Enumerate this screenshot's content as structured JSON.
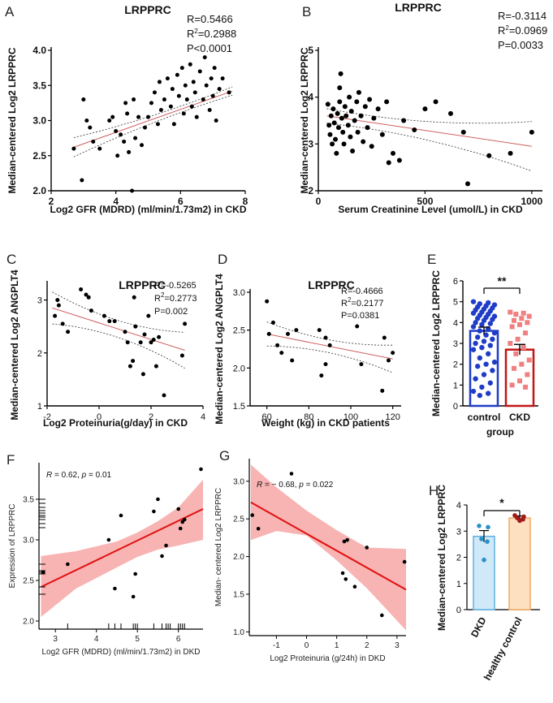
{
  "chart_data": [
    {
      "panel": "A",
      "type": "scatter",
      "title": "LRPPRC",
      "xlabel": "Log2 GFR (MDRD) (ml/min/1.73m2) in CKD",
      "ylabel": "Median-centered Log2 LRPPRC",
      "xlim": [
        2,
        8
      ],
      "ylim": [
        2.0,
        4.0
      ],
      "xticks": [
        "2",
        "4",
        "6",
        "8"
      ],
      "yticks": [
        "2.0",
        "2.5",
        "3.0",
        "3.5",
        "4.0"
      ],
      "stats": {
        "r": "R=0.5466",
        "r2": "R²=0.2988",
        "p": "P<0.0001"
      },
      "fit": {
        "x": [
          2.7,
          7.6
        ],
        "y": [
          2.62,
          3.42
        ]
      },
      "points": [
        [
          2.7,
          2.6
        ],
        [
          2.95,
          2.15
        ],
        [
          3.0,
          3.3
        ],
        [
          3.1,
          3.0
        ],
        [
          3.2,
          2.9
        ],
        [
          3.3,
          2.7
        ],
        [
          3.5,
          2.6
        ],
        [
          3.8,
          3.0
        ],
        [
          3.9,
          3.05
        ],
        [
          4.0,
          2.85
        ],
        [
          4.05,
          2.5
        ],
        [
          4.15,
          2.8
        ],
        [
          4.25,
          2.7
        ],
        [
          4.3,
          3.25
        ],
        [
          4.35,
          3.1
        ],
        [
          4.4,
          2.55
        ],
        [
          4.5,
          2.0
        ],
        [
          4.55,
          3.3
        ],
        [
          4.6,
          2.75
        ],
        [
          4.7,
          3.05
        ],
        [
          4.8,
          2.65
        ],
        [
          4.9,
          2.9
        ],
        [
          5.0,
          3.05
        ],
        [
          5.1,
          3.25
        ],
        [
          5.2,
          3.4
        ],
        [
          5.3,
          2.95
        ],
        [
          5.35,
          3.55
        ],
        [
          5.4,
          3.15
        ],
        [
          5.5,
          3.3
        ],
        [
          5.6,
          3.6
        ],
        [
          5.7,
          3.2
        ],
        [
          5.75,
          3.45
        ],
        [
          5.8,
          2.95
        ],
        [
          5.9,
          3.65
        ],
        [
          5.95,
          3.35
        ],
        [
          6.05,
          3.75
        ],
        [
          6.1,
          3.1
        ],
        [
          6.15,
          3.5
        ],
        [
          6.2,
          3.3
        ],
        [
          6.3,
          3.8
        ],
        [
          6.35,
          3.2
        ],
        [
          6.4,
          3.55
        ],
        [
          6.45,
          3.4
        ],
        [
          6.5,
          3.05
        ],
        [
          6.6,
          3.7
        ],
        [
          6.7,
          3.3
        ],
        [
          6.75,
          3.9
        ],
        [
          6.8,
          3.5
        ],
        [
          6.9,
          3.15
        ],
        [
          6.95,
          3.6
        ],
        [
          7.0,
          3.35
        ],
        [
          7.05,
          3.75
        ],
        [
          7.1,
          3.0
        ],
        [
          7.2,
          3.45
        ],
        [
          7.3,
          3.6
        ],
        [
          7.5,
          3.4
        ]
      ]
    },
    {
      "panel": "B",
      "type": "scatter",
      "title": "LRPPRC",
      "xlabel": "Serum Creatinine Level (umol/L) in CKD",
      "ylabel": "Median-centered Log2 LRPPRC",
      "xlim": [
        0,
        1050
      ],
      "ylim": [
        2,
        5
      ],
      "xticks": [
        "0",
        "500",
        "1000"
      ],
      "yticks": [
        "2",
        "3",
        "4",
        "5"
      ],
      "stats": {
        "r": "R=-0.3114",
        "r2": "R²=0.0969",
        "p": "P=0.0033"
      },
      "fit": {
        "x": [
          40,
          1000
        ],
        "y": [
          3.6,
          2.95
        ]
      },
      "points": [
        [
          45,
          3.85
        ],
        [
          50,
          3.4
        ],
        [
          55,
          3.2
        ],
        [
          60,
          3.6
        ],
        [
          65,
          3.0
        ],
        [
          70,
          3.75
        ],
        [
          75,
          3.45
        ],
        [
          80,
          3.1
        ],
        [
          85,
          2.8
        ],
        [
          90,
          3.65
        ],
        [
          95,
          3.35
        ],
        [
          100,
          4.2
        ],
        [
          100,
          3.9
        ],
        [
          105,
          4.5
        ],
        [
          110,
          3.55
        ],
        [
          115,
          3.25
        ],
        [
          120,
          3.0
        ],
        [
          125,
          3.8
        ],
        [
          130,
          3.6
        ],
        [
          140,
          3.4
        ],
        [
          145,
          4.0
        ],
        [
          150,
          3.15
        ],
        [
          155,
          3.7
        ],
        [
          160,
          2.85
        ],
        [
          170,
          3.5
        ],
        [
          180,
          3.9
        ],
        [
          185,
          3.25
        ],
        [
          190,
          4.1
        ],
        [
          200,
          3.6
        ],
        [
          210,
          3.05
        ],
        [
          220,
          3.8
        ],
        [
          230,
          3.35
        ],
        [
          240,
          3.95
        ],
        [
          250,
          2.95
        ],
        [
          260,
          3.55
        ],
        [
          280,
          3.75
        ],
        [
          300,
          3.2
        ],
        [
          320,
          3.9
        ],
        [
          330,
          2.6
        ],
        [
          350,
          2.8
        ],
        [
          380,
          2.65
        ],
        [
          400,
          3.5
        ],
        [
          450,
          3.3
        ],
        [
          500,
          3.75
        ],
        [
          550,
          3.9
        ],
        [
          620,
          3.65
        ],
        [
          680,
          3.25
        ],
        [
          700,
          2.15
        ],
        [
          800,
          2.75
        ],
        [
          900,
          2.8
        ],
        [
          1000,
          3.25
        ]
      ]
    },
    {
      "panel": "C",
      "type": "scatter",
      "title": "LRPPRC",
      "xlabel": "Log2 Proteinuria(g/day) in CKD",
      "ylabel": "Median-centered Log2 ANGPLT4",
      "xlim": [
        -2,
        4
      ],
      "ylim": [
        1,
        3.3
      ],
      "xticks": [
        "-2",
        "0",
        "2",
        "4"
      ],
      "yticks": [
        "1",
        "2",
        "3"
      ],
      "stats": {
        "r": "R=-0.5265",
        "r2": "R²=0.2773",
        "p": "P=0.002"
      },
      "fit": {
        "x": [
          -1.8,
          3.3
        ],
        "y": [
          2.85,
          2.05
        ]
      },
      "points": [
        [
          -1.7,
          2.7
        ],
        [
          -1.6,
          3.0
        ],
        [
          -1.55,
          2.9
        ],
        [
          -1.4,
          2.55
        ],
        [
          -1.2,
          2.4
        ],
        [
          -0.7,
          3.2
        ],
        [
          -0.5,
          3.1
        ],
        [
          -0.4,
          3.05
        ],
        [
          -0.3,
          2.8
        ],
        [
          0.2,
          2.7
        ],
        [
          0.4,
          2.6
        ],
        [
          0.6,
          2.6
        ],
        [
          1.0,
          2.4
        ],
        [
          1.1,
          2.2
        ],
        [
          1.2,
          1.75
        ],
        [
          1.3,
          1.85
        ],
        [
          1.35,
          3.05
        ],
        [
          1.4,
          2.5
        ],
        [
          1.6,
          2.2
        ],
        [
          1.7,
          1.6
        ],
        [
          1.75,
          2.35
        ],
        [
          1.9,
          2.7
        ],
        [
          2.0,
          2.2
        ],
        [
          2.1,
          2.25
        ],
        [
          2.2,
          1.75
        ],
        [
          2.3,
          2.3
        ],
        [
          2.5,
          1.2
        ],
        [
          3.2,
          1.95
        ],
        [
          3.3,
          2.55
        ]
      ]
    },
    {
      "panel": "D",
      "type": "scatter",
      "title": "LRPPRC",
      "xlabel": "Weight (kg) in CKD patients",
      "ylabel": "Median-centered Log2 ANGPLT4",
      "xlim": [
        52,
        124
      ],
      "ylim": [
        1.5,
        3.0
      ],
      "xticks": [
        "60",
        "80",
        "100",
        "120"
      ],
      "yticks": [
        "1.5",
        "2.0",
        "2.5",
        "3.0"
      ],
      "stats": {
        "r": "R=-0.4666",
        "r2": "R²=0.2177",
        "p": "P=0.0381"
      },
      "fit": {
        "x": [
          60,
          120
        ],
        "y": [
          2.45,
          2.12
        ]
      },
      "points": [
        [
          60,
          2.88
        ],
        [
          61,
          2.45
        ],
        [
          63,
          2.6
        ],
        [
          65,
          2.3
        ],
        [
          67,
          2.2
        ],
        [
          70,
          2.45
        ],
        [
          72,
          2.1
        ],
        [
          74,
          2.5
        ],
        [
          85,
          2.5
        ],
        [
          86,
          1.9
        ],
        [
          88,
          2.4
        ],
        [
          88,
          2.05
        ],
        [
          90,
          2.3
        ],
        [
          103,
          2.55
        ],
        [
          105,
          2.05
        ],
        [
          115,
          1.7
        ],
        [
          116,
          2.4
        ],
        [
          118,
          2.1
        ],
        [
          120,
          2.2
        ]
      ]
    },
    {
      "panel": "E",
      "type": "bar",
      "xlabel": "group",
      "ylabel": "Median-centered Log2 LRPPRC",
      "categories": [
        "control",
        "CKD"
      ],
      "values": [
        3.6,
        2.7
      ],
      "errors": [
        0.18,
        0.25
      ],
      "ylim": [
        0,
        6
      ],
      "yticks": [
        "0",
        "1",
        "2",
        "3",
        "4",
        "5",
        "6"
      ],
      "significance": "**",
      "colors": {
        "control": "#1f3cc8",
        "CKD": "#c21515",
        "CKD_points": "#f08080"
      },
      "points": {
        "control": [
          5.0,
          4.95,
          4.9,
          4.85,
          4.8,
          4.75,
          4.7,
          4.65,
          4.6,
          4.55,
          4.5,
          4.45,
          4.4,
          4.35,
          4.3,
          4.25,
          4.2,
          4.15,
          4.1,
          4.0,
          3.95,
          3.9,
          3.8,
          3.7,
          3.6,
          3.5,
          3.4,
          3.3,
          3.2,
          3.1,
          3.0,
          2.9,
          2.8,
          2.7,
          2.5,
          2.3,
          2.1,
          2.0,
          1.9,
          1.7,
          1.5,
          1.3,
          1.1,
          0.9,
          0.7,
          0.6,
          0.5
        ],
        "CKD": [
          4.5,
          4.45,
          4.4,
          4.3,
          4.2,
          4.1,
          4.0,
          3.9,
          3.8,
          3.5,
          3.2,
          3.0,
          2.8,
          2.5,
          2.2,
          2.0,
          1.8,
          1.5,
          1.2,
          1.0,
          0.9
        ]
      }
    },
    {
      "panel": "F",
      "type": "scatter",
      "xlabel": "Log2 GFR (MDRD) (ml/min/1.73m2) in DKD",
      "ylabel": "Expression of LRPPRC",
      "xlim": [
        2.6,
        6.6
      ],
      "ylim": [
        1.9,
        3.95
      ],
      "xticks": [
        "3",
        "4",
        "5",
        "6"
      ],
      "yticks": [
        "2.0",
        "2.5",
        "3.0",
        "3.5"
      ],
      "stats": {
        "r_label": "R",
        "r_value": " = 0.62, ",
        "p_label": "p",
        "p_value": " = 0.01"
      },
      "fit": {
        "x": [
          2.65,
          6.6
        ],
        "y": [
          2.42,
          3.38
        ]
      },
      "band": {
        "x": [
          2.65,
          3.5,
          4.5,
          5.0,
          5.5,
          6.0,
          6.6
        ],
        "lo": [
          2.05,
          2.4,
          2.66,
          2.79,
          2.88,
          2.93,
          3.0
        ],
        "hi": [
          2.8,
          2.86,
          2.98,
          3.09,
          3.23,
          3.4,
          3.74
        ]
      },
      "rug_x": [
        3.3,
        4.3,
        4.45,
        4.6,
        4.9,
        4.95,
        5.0,
        5.4,
        5.6,
        5.7,
        5.75,
        5.8,
        6.0,
        6.05,
        6.1,
        6.15
      ],
      "rug_y": [
        2.33,
        2.42,
        2.58,
        2.6,
        2.62,
        2.7,
        3.15,
        3.2,
        3.25,
        3.28,
        3.3,
        3.33,
        3.36,
        3.4,
        3.45,
        3.5
      ],
      "points": [
        [
          2.7,
          2.6
        ],
        [
          3.3,
          2.7
        ],
        [
          4.3,
          3.0
        ],
        [
          4.45,
          2.4
        ],
        [
          4.6,
          3.3
        ],
        [
          4.9,
          2.3
        ],
        [
          4.95,
          2.58
        ],
        [
          5.4,
          3.35
        ],
        [
          5.5,
          3.5
        ],
        [
          5.6,
          2.8
        ],
        [
          5.7,
          2.93
        ],
        [
          6.0,
          3.38
        ],
        [
          6.05,
          3.14
        ],
        [
          6.1,
          3.22
        ],
        [
          6.15,
          3.25
        ],
        [
          6.55,
          3.87
        ]
      ]
    },
    {
      "panel": "G",
      "type": "scatter",
      "xlabel": "Log2 Proteinuria (g/24h) in DKD",
      "ylabel": "Median- centered Log2 LRPPRC",
      "xlim": [
        -1.9,
        3.3
      ],
      "ylim": [
        0.95,
        3.3
      ],
      "xticks": [
        "-1",
        "0",
        "1",
        "2",
        "3"
      ],
      "yticks": [
        "1.0",
        "1.5",
        "2.0",
        "2.5",
        "3.0"
      ],
      "stats": {
        "r_label": "R",
        "r_value": " = − 0.68, ",
        "p_label": "p",
        "p_value": " = 0.022"
      },
      "fit": {
        "x": [
          -1.85,
          3.3
        ],
        "y": [
          2.72,
          1.56
        ]
      },
      "band": {
        "x": [
          -1.85,
          -1.0,
          0.0,
          1.0,
          2.0,
          3.3
        ],
        "lo": [
          2.22,
          2.34,
          2.28,
          1.95,
          1.58,
          1.02
        ],
        "hi": [
          3.22,
          2.92,
          2.61,
          2.35,
          2.12,
          2.1
        ]
      },
      "points": [
        [
          -1.8,
          2.55
        ],
        [
          -1.6,
          2.37
        ],
        [
          -0.5,
          3.1
        ],
        [
          1.2,
          1.78
        ],
        [
          1.25,
          2.2
        ],
        [
          1.3,
          1.7
        ],
        [
          1.35,
          2.22
        ],
        [
          1.6,
          1.6
        ],
        [
          2.0,
          2.12
        ],
        [
          2.5,
          1.22
        ],
        [
          3.25,
          1.93
        ]
      ]
    },
    {
      "panel": "H",
      "type": "bar",
      "ylabel": "Median-centered Log2 LRPPRC",
      "categories": [
        "DKD",
        "healthy control"
      ],
      "values": [
        2.8,
        3.5
      ],
      "errors": [
        0.22,
        0.08
      ],
      "ylim": [
        0,
        4
      ],
      "yticks": [
        "0",
        "1",
        "2",
        "3",
        "4"
      ],
      "significance": "*",
      "colors": {
        "DKD_fill": "#cfe9f8",
        "DKD_edge": "#5fb0e0",
        "DKD_points": "#2a90c8",
        "hc_fill": "#fde0c0",
        "hc_edge": "#f4a860",
        "hc_points": "#a01818"
      },
      "points": {
        "DKD": [
          3.2,
          3.15,
          2.7,
          2.6,
          1.9
        ],
        "healthy control": [
          3.6,
          3.55,
          3.5,
          3.45,
          3.4
        ]
      }
    }
  ]
}
